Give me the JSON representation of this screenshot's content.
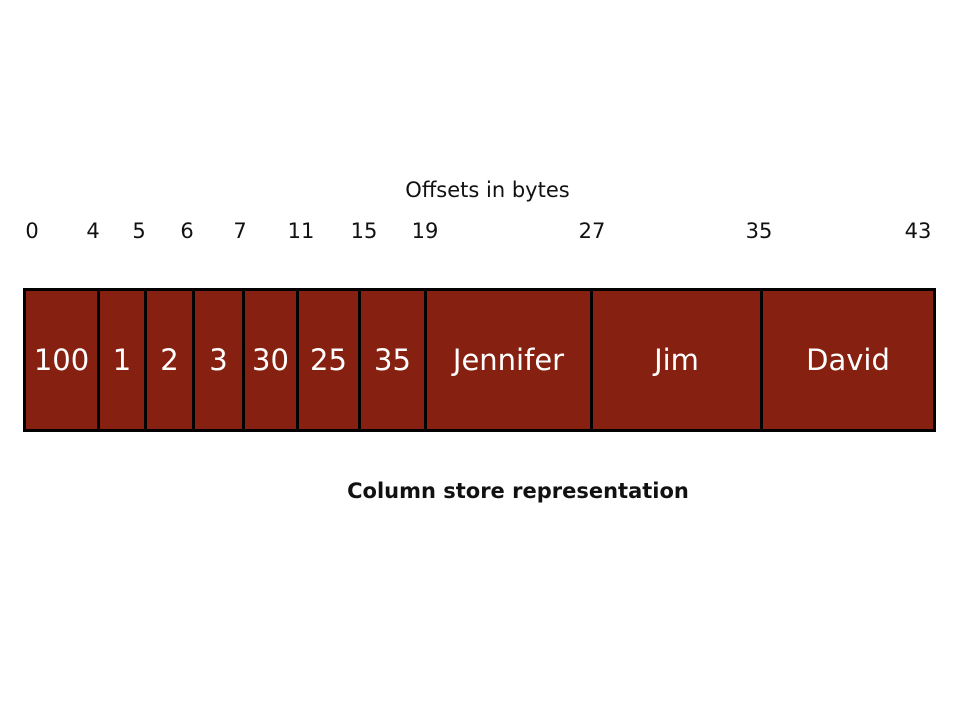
{
  "axis_title": "Offsets in bytes",
  "caption": "Column store representation",
  "colors": {
    "cell_fill": "#862010",
    "cell_border": "#000000",
    "cell_text": "#ffffff"
  },
  "offsets": [
    "0",
    "4",
    "5",
    "6",
    "7",
    "11",
    "15",
    "19",
    "27",
    "35",
    "43"
  ],
  "cells": [
    "100",
    "1",
    "2",
    "3",
    "30",
    "25",
    "35",
    "Jennifer",
    "Jim",
    "David"
  ]
}
